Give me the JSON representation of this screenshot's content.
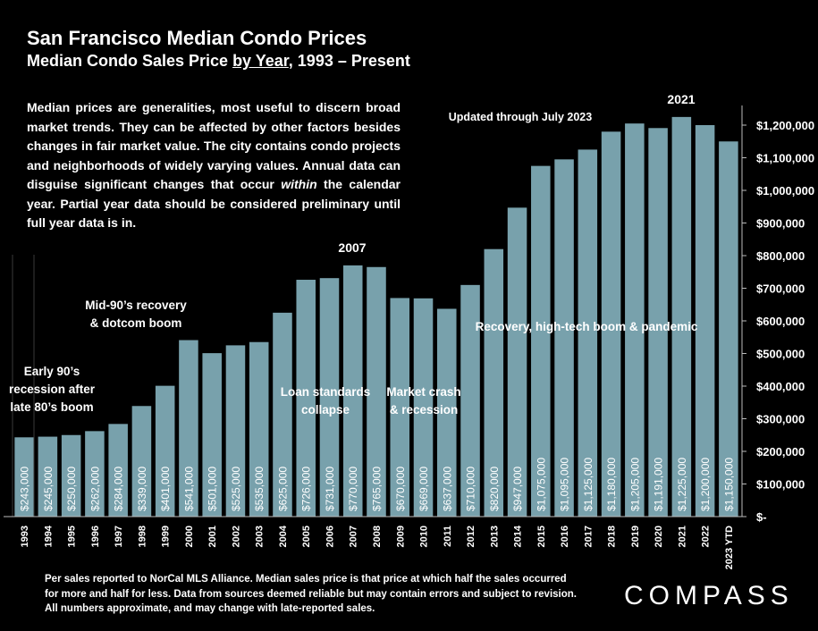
{
  "header": {
    "title": "San Francisco Median Condo Prices",
    "subtitle_pre": "Median Condo Sales Price ",
    "subtitle_underlined": "by Year",
    "subtitle_post": ", 1993 – Present"
  },
  "description_parts": {
    "before": "Median prices are generalities, most useful to discern broad market trends. They can be affected by other factors besides changes in fair market value. The city contains condo projects and neighborhoods of widely varying values. Annual data can disguise significant changes that occur ",
    "italic": "within",
    "after": " the calendar year. Partial year data should be considered preliminary until full year data is in."
  },
  "footnote": "Per sales reported to NorCal MLS Alliance. Median sales price is that price at which half the sales occurred for more and half for less. Data from sources deemed reliable but may contain errors and subject to revision. All numbers approximate, and may change with late-reported sales.",
  "logo": "COMPASS",
  "colors": {
    "bar": "#78a1ac",
    "background": "#000000",
    "text": "#ffffff"
  },
  "chart_data": {
    "type": "bar",
    "categories": [
      "1993",
      "1994",
      "1995",
      "1996",
      "1997",
      "1998",
      "1999",
      "2000",
      "2001",
      "2002",
      "2003",
      "2004",
      "2005",
      "2006",
      "2007",
      "2008",
      "2009",
      "2010",
      "2011",
      "2012",
      "2013",
      "2014",
      "2015",
      "2016",
      "2017",
      "2018",
      "2019",
      "2020",
      "2021",
      "2022",
      "2023 YTD"
    ],
    "values": [
      243000,
      245000,
      250000,
      262000,
      284000,
      339000,
      401000,
      541000,
      501000,
      525000,
      535000,
      625000,
      726000,
      731000,
      770000,
      765000,
      670000,
      669000,
      637000,
      710000,
      820000,
      947000,
      1075000,
      1095000,
      1125000,
      1180000,
      1205000,
      1191000,
      1225000,
      1200000,
      1150000
    ],
    "value_labels": [
      "$243,000",
      "$245,000",
      "$250,000",
      "$262,000",
      "$284,000",
      "$339,000",
      "$401,000",
      "$541,000",
      "$501,000",
      "$525,000",
      "$535,000",
      "$625,000",
      "$726,000",
      "$731,000",
      "$770,000",
      "$765,000",
      "$670,000",
      "$669,000",
      "$637,000",
      "$710,000",
      "$820,000",
      "$947,000",
      "$1,075,000",
      "$1,095,000",
      "$1,125,000",
      "$1,180,000",
      "$1,205,000",
      "$1,191,000",
      "$1,225,000",
      "$1,200,000",
      "$1,150,000"
    ],
    "ylim": [
      0,
      1200000
    ],
    "y_ticks": [
      0,
      100000,
      200000,
      300000,
      400000,
      500000,
      600000,
      700000,
      800000,
      900000,
      1000000,
      1100000,
      1200000
    ],
    "y_tick_labels": [
      "$-",
      "$100,000",
      "$200,000",
      "$300,000",
      "$400,000",
      "$500,000",
      "$600,000",
      "$700,000",
      "$800,000",
      "$900,000",
      "$1,000,000",
      "$1,100,000",
      "$1,200,000"
    ],
    "y_axis_side": "right",
    "grid": false,
    "annotations": [
      {
        "text": "Early 90’s recession after late 80’s boom",
        "lines": [
          "Early 90’s",
          "recession after",
          "late 80’s boom"
        ],
        "near": "1994"
      },
      {
        "text": "Mid-90’s recovery & dotcom boom",
        "lines": [
          "Mid-90’s recovery",
          "& dotcom boom"
        ],
        "near": "2000"
      },
      {
        "text": "2007",
        "lines": [
          "2007"
        ],
        "near": "2007"
      },
      {
        "text": "Loan standards collapse",
        "lines": [
          "Loan standards",
          "collapse"
        ],
        "near": "2006"
      },
      {
        "text": "Market crash & recession",
        "lines": [
          "Market crash",
          "& recession"
        ],
        "near": "2010"
      },
      {
        "text": "Recovery, high-tech boom & pandemic",
        "lines": [
          "Recovery, high-tech boom & pandemic"
        ],
        "near": "2018"
      },
      {
        "text": "Updated through July 2023",
        "lines": [
          "Updated through July 2023"
        ],
        "near": "2016"
      },
      {
        "text": "2021",
        "lines": [
          "2021"
        ],
        "near": "2021"
      }
    ]
  }
}
